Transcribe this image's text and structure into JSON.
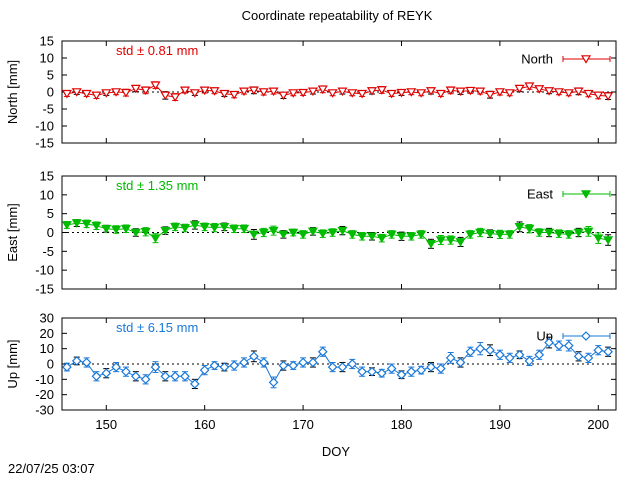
{
  "figure": {
    "title": "Coordinate repeatability of REYK",
    "xlabel": "DOY",
    "timestamp": "22/07/25 03:07"
  },
  "chart_data": [
    {
      "type": "line",
      "name": "North",
      "ylabel": "North [mm]",
      "std_label": "std ± 0.81 mm",
      "color": "#e00000",
      "marker": "triangle-down-open",
      "xlim": [
        145.5,
        201.8
      ],
      "ylim": [
        -15,
        15
      ],
      "xticks": [
        150,
        160,
        170,
        180,
        190,
        200
      ],
      "yticks": [
        -15,
        -10,
        -5,
        0,
        5,
        10,
        15
      ],
      "x": [
        146,
        147,
        148,
        149,
        150,
        151,
        152,
        153,
        154,
        155,
        156,
        157,
        158,
        159,
        160,
        161,
        162,
        163,
        164,
        165,
        166,
        167,
        168,
        169,
        170,
        171,
        172,
        173,
        174,
        175,
        176,
        177,
        178,
        179,
        180,
        181,
        182,
        183,
        184,
        185,
        186,
        187,
        188,
        189,
        190,
        191,
        192,
        193,
        194,
        195,
        196,
        197,
        198,
        199,
        200,
        201
      ],
      "y": [
        -0.5,
        0,
        -0.5,
        -1,
        -0.3,
        0,
        -0.2,
        1,
        0.5,
        2,
        -1,
        -1.5,
        0.5,
        -0.3,
        0.5,
        0.3,
        -0.5,
        -0.8,
        0.2,
        0.5,
        0,
        0.2,
        -1,
        -0.3,
        -0.2,
        0.2,
        0.8,
        -0.3,
        0.2,
        -0.3,
        -0.5,
        0.3,
        0.6,
        -0.5,
        -0.2,
        0,
        -0.3,
        0.3,
        -0.5,
        0.5,
        0.2,
        0.4,
        0.2,
        -0.8,
        0,
        -0.3,
        1,
        1.7,
        0.9,
        0.3,
        0,
        -0.3,
        0.2,
        -0.5,
        -1,
        -1.2
      ],
      "err": [
        0.8,
        0.7,
        0.8,
        0.9,
        0.7,
        0.8,
        1,
        0.9,
        1,
        1,
        1.1,
        1,
        0.8,
        0.7,
        0.8,
        0.8,
        0.8,
        0.9,
        0.8,
        1,
        0.9,
        0.8,
        0.9,
        0.8,
        0.8,
        0.8,
        1,
        0.8,
        0.8,
        0.8,
        0.8,
        0.9,
        1,
        0.8,
        0.8,
        0.8,
        0.8,
        0.9,
        0.8,
        1,
        0.9,
        0.8,
        0.8,
        1,
        0.9,
        0.8,
        0.9,
        0.9,
        0.8,
        0.8,
        0.8,
        0.8,
        1,
        0.9,
        1,
        1
      ]
    },
    {
      "type": "line",
      "name": "East",
      "ylabel": "East [mm]",
      "std_label": "std ± 1.35 mm",
      "color": "#00bb00",
      "marker": "triangle-down-filled",
      "xlim": [
        145.5,
        201.8
      ],
      "ylim": [
        -15,
        15
      ],
      "xticks": [
        150,
        160,
        170,
        180,
        190,
        200
      ],
      "yticks": [
        -15,
        -10,
        -5,
        0,
        5,
        10,
        15
      ],
      "x": [
        146,
        147,
        148,
        149,
        150,
        151,
        152,
        153,
        154,
        155,
        156,
        157,
        158,
        159,
        160,
        161,
        162,
        163,
        164,
        165,
        166,
        167,
        168,
        169,
        170,
        171,
        172,
        173,
        174,
        175,
        176,
        177,
        178,
        179,
        180,
        181,
        182,
        183,
        184,
        185,
        186,
        187,
        188,
        189,
        190,
        191,
        192,
        193,
        194,
        195,
        196,
        197,
        198,
        199,
        200,
        201
      ],
      "y": [
        2,
        2.5,
        2.3,
        1.8,
        1,
        0.8,
        1,
        0,
        0.2,
        -1.5,
        0.5,
        1.5,
        1.2,
        2,
        1.5,
        1.3,
        1.5,
        1,
        1,
        -0.5,
        0,
        0.5,
        -0.5,
        0,
        -0.5,
        0.3,
        -0.3,
        0,
        0.5,
        -0.5,
        -1,
        -1,
        -1.5,
        -0.5,
        -1,
        -1,
        -0.5,
        -3,
        -2,
        -2,
        -2.5,
        -0.5,
        0,
        -0.3,
        -0.5,
        -0.5,
        1.5,
        1,
        0,
        0,
        -0.3,
        -0.5,
        0,
        0.3,
        -1.5,
        -2
      ],
      "err": [
        0.9,
        0.9,
        1,
        1,
        0.9,
        1,
        1,
        1,
        1.1,
        1.2,
        1,
        1,
        1,
        1.1,
        1,
        1.1,
        1,
        1,
        1,
        1.3,
        1.1,
        1.2,
        1,
        0.9,
        1,
        1,
        1,
        1,
        1.1,
        1,
        1,
        1,
        1,
        1,
        1.1,
        1,
        1,
        1.2,
        1.2,
        1.1,
        1.2,
        1,
        1.1,
        1,
        1.1,
        1,
        1.3,
        1.1,
        1,
        1.1,
        1,
        1,
        1.1,
        1.3,
        1.4,
        1.4
      ]
    },
    {
      "type": "line",
      "name": "Up",
      "ylabel": "Up [mm]",
      "std_label": "std ± 6.15 mm",
      "color": "#1a78d8",
      "marker": "diamond-open",
      "xlim": [
        145.5,
        201.8
      ],
      "ylim": [
        -30,
        30
      ],
      "xticks": [
        150,
        160,
        170,
        180,
        190,
        200
      ],
      "yticks": [
        -30,
        -20,
        -10,
        0,
        10,
        20,
        30
      ],
      "x": [
        146,
        147,
        148,
        149,
        150,
        151,
        152,
        153,
        154,
        155,
        156,
        157,
        158,
        159,
        160,
        161,
        162,
        163,
        164,
        165,
        166,
        167,
        168,
        169,
        170,
        171,
        172,
        173,
        174,
        175,
        176,
        177,
        178,
        179,
        180,
        181,
        182,
        183,
        184,
        185,
        186,
        187,
        188,
        189,
        190,
        191,
        192,
        193,
        194,
        195,
        196,
        197,
        198,
        199,
        200,
        201
      ],
      "y": [
        -2,
        2,
        1,
        -8,
        -6,
        -2,
        -5,
        -8,
        -10,
        -2,
        -8,
        -8,
        -8,
        -13,
        -4,
        -1,
        -2,
        -1,
        1,
        5,
        1,
        -12,
        -1,
        -1,
        1,
        1,
        8,
        -2,
        -2,
        0,
        -5,
        -5,
        -6,
        -3,
        -7,
        -5,
        -4,
        -2,
        -3,
        4,
        1,
        8,
        10,
        9,
        6,
        4,
        6,
        2,
        6,
        14,
        12,
        12,
        5,
        4,
        9,
        8
      ],
      "err": [
        2.5,
        2.5,
        3,
        3,
        3,
        3,
        3,
        3,
        3,
        3.5,
        3,
        3,
        3,
        3,
        3,
        2.5,
        2.5,
        3,
        3,
        3.5,
        3,
        3.5,
        3,
        2.5,
        3,
        3,
        3,
        3,
        3,
        3,
        3,
        2.5,
        2.5,
        3,
        2.5,
        3,
        2.5,
        3,
        3,
        3.5,
        3,
        3,
        4,
        3.5,
        3,
        3,
        2.5,
        3,
        3,
        3.5,
        3,
        3.5,
        3,
        3,
        3,
        3
      ]
    }
  ]
}
